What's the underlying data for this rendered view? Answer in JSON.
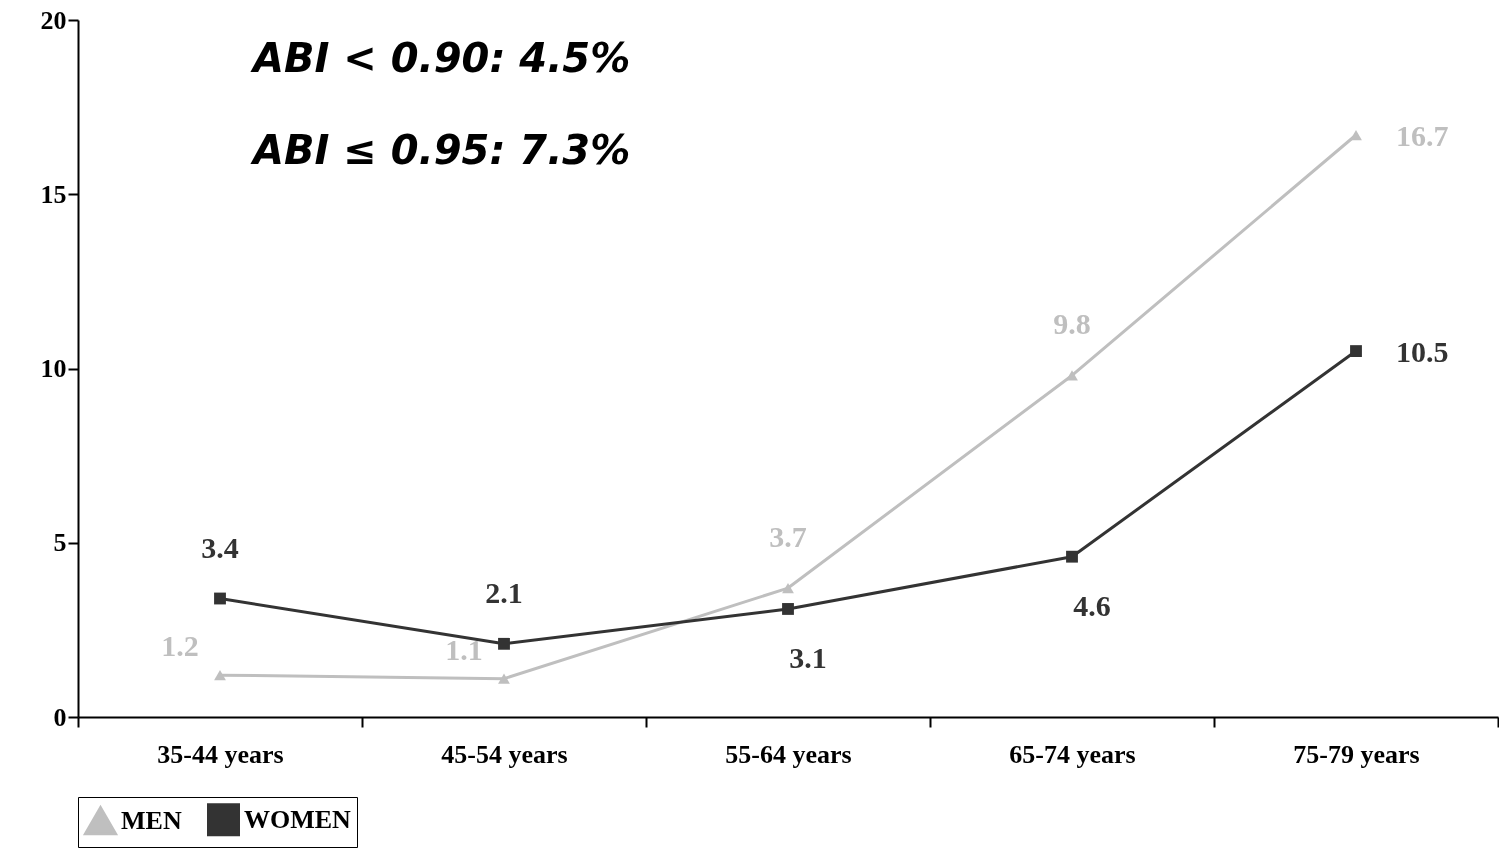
{
  "chart_data": {
    "type": "line",
    "categories": [
      "35-44 years",
      "45-54 years",
      "55-64 years",
      "65-74 years",
      "75-79 years"
    ],
    "series": [
      {
        "name": "MEN",
        "color": "#bfbfbf",
        "marker": "triangle",
        "values": [
          1.2,
          1.1,
          3.7,
          9.8,
          16.7
        ]
      },
      {
        "name": "WOMEN",
        "color": "#333333",
        "marker": "square",
        "values": [
          3.4,
          2.1,
          3.1,
          4.6,
          10.5
        ]
      }
    ],
    "ylim": [
      0,
      20
    ],
    "yticks": [
      0,
      5,
      10,
      15,
      20
    ],
    "grid": false,
    "legend": "bottom",
    "data_labels": true,
    "annotations": [
      "ABI < 0.90: 4.5%",
      "ABI ≤ 0.95: 7.3%"
    ]
  }
}
